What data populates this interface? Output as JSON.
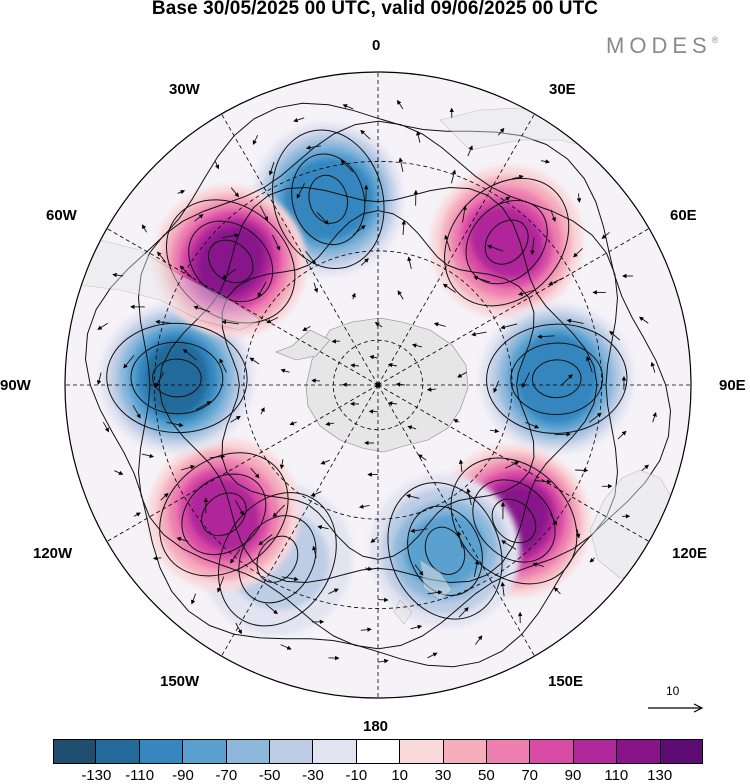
{
  "title": "Base 30/05/2025 00 UTC, valid 09/06/2025 00 UTC",
  "brand": "MODES",
  "brand_mark": "®",
  "longitude_labels": {
    "lon_0": "0",
    "lon_30e": "30E",
    "lon_60e": "60E",
    "lon_90e": "90E",
    "lon_120e": "120E",
    "lon_150e": "150E",
    "lon_180": "180",
    "lon_150w": "150W",
    "lon_120w": "120W",
    "lon_90w": "90W",
    "lon_60w": "60W",
    "lon_30w": "30W"
  },
  "colorbar": {
    "colors": [
      "#1f4e6e",
      "#236a9a",
      "#3686bf",
      "#5aa1d0",
      "#8db8dc",
      "#bdcde6",
      "#e3e4f1",
      "#ffffff",
      "#f9d9dc",
      "#f4aebd",
      "#ee7fb1",
      "#d84ca6",
      "#b0289a",
      "#87148a",
      "#5c0c73"
    ],
    "labels": [
      "-130",
      "-110",
      "-90",
      "-70",
      "-50",
      "-30",
      "-10",
      "10",
      "30",
      "50",
      "70",
      "90",
      "110",
      "130"
    ]
  },
  "reference_vector": {
    "label": "10"
  },
  "anomaly_centers": [
    {
      "lon": -15,
      "lat": -47,
      "value": -110
    },
    {
      "lon": 42,
      "lat": -47,
      "value": 100
    },
    {
      "lon": 88,
      "lat": -50,
      "value": -110
    },
    {
      "lon": 135,
      "lat": -47,
      "value": 110
    },
    {
      "lon": 158,
      "lat": -50,
      "value": -80
    },
    {
      "lon": -150,
      "lat": -45,
      "value": -40
    },
    {
      "lon": -130,
      "lat": -45,
      "value": 100
    },
    {
      "lon": -88,
      "lat": -45,
      "value": -120
    },
    {
      "lon": -50,
      "lat": -47,
      "value": 120
    }
  ],
  "colors": {
    "land": "#e6e6e6",
    "grid": "#000000"
  }
}
